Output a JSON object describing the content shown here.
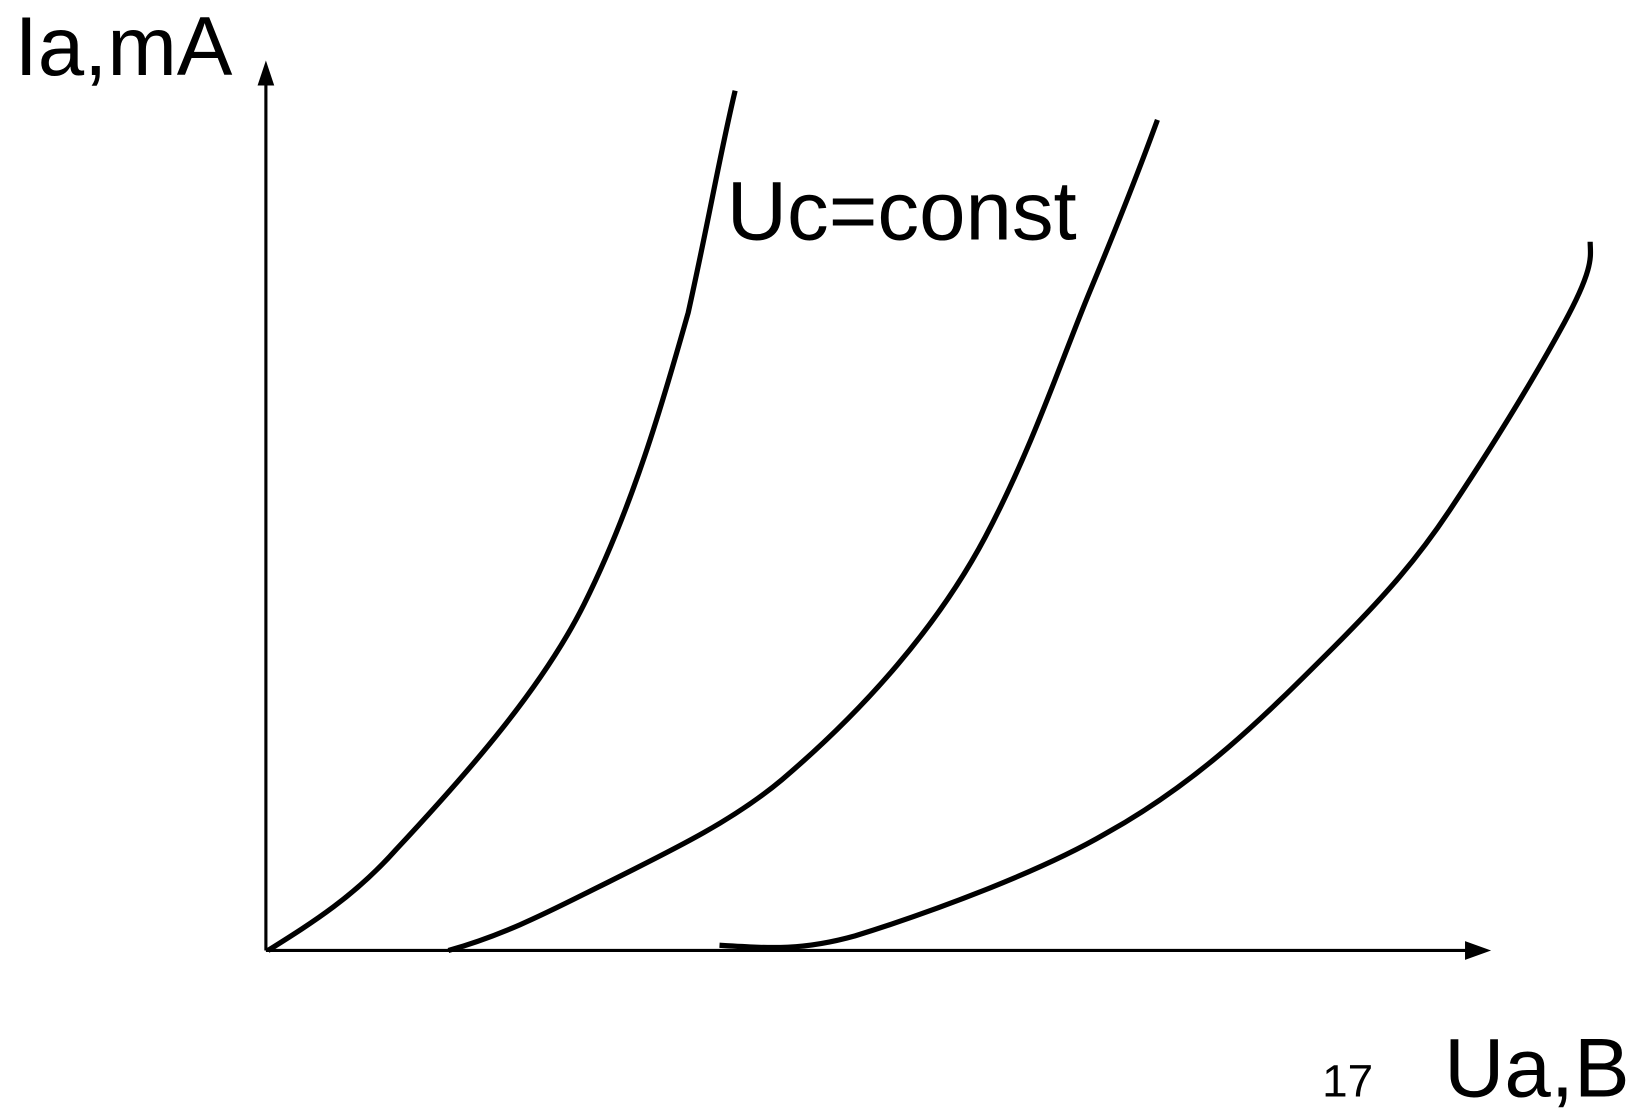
{
  "labels": {
    "y_axis": "Ia,mA",
    "x_axis": "Ua,B",
    "curve_label": "Uc=const",
    "page_number": "17"
  }
}
